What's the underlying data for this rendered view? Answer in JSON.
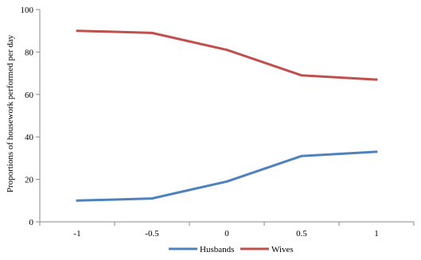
{
  "chart_data": {
    "type": "line",
    "title": "",
    "xlabel": "",
    "ylabel": "Proportions of housework performed per day",
    "categories": [
      "-1",
      "-0.5",
      "0",
      "0.5",
      "1"
    ],
    "ylim": [
      0,
      100
    ],
    "yticks": [
      0,
      20,
      40,
      60,
      80,
      100
    ],
    "grid": false,
    "legend_position": "bottom",
    "series": [
      {
        "name": "Husbands",
        "color": "#4f81bd",
        "values": [
          10,
          11,
          19,
          31,
          33
        ]
      },
      {
        "name": "Wives",
        "color": "#c0504d",
        "values": [
          90,
          89,
          81,
          69,
          67
        ]
      }
    ]
  }
}
